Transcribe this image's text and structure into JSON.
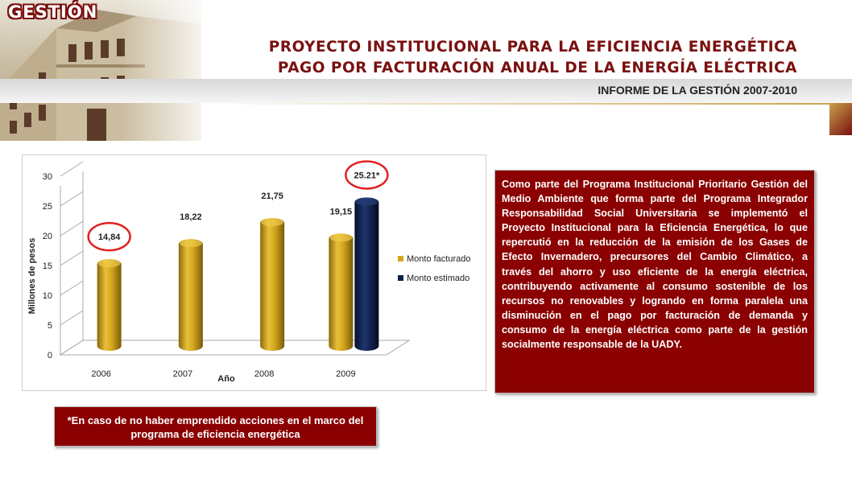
{
  "header": {
    "section_label": "GESTIÓN",
    "title_line1": "PROYECTO INSTITUCIONAL PARA LA EFICIENCIA ENERGÉTICA",
    "title_line2": "PAGO POR FACTURACIÓN ANUAL DE LA ENERGÍA ELÉCTRICA",
    "subtitle": "INFORME DE LA GESTIÓN 2007-2010"
  },
  "colors": {
    "brand_maroon": "#8b0000",
    "title_maroon": "#7a1010",
    "bar_gold": "#d4a51e",
    "bar_navy": "#0e1f4d",
    "highlight_circle": "#e02020"
  },
  "chart_data": {
    "type": "bar",
    "xlabel": "Año",
    "ylabel": "Millones de pesos",
    "ylim": [
      0,
      30
    ],
    "yticks": [
      "0",
      "5",
      "10",
      "15",
      "20",
      "25",
      "30"
    ],
    "categories": [
      "2006",
      "2007",
      "2008",
      "2009"
    ],
    "series": [
      {
        "name": "Monto facturado",
        "values": [
          14.84,
          18.22,
          21.75,
          19.15
        ],
        "labels": [
          "14,84",
          "18,22",
          "21,75",
          "19,15"
        ],
        "color": "#d4a51e"
      },
      {
        "name": "Monto estimado",
        "values": [
          null,
          null,
          null,
          25.21
        ],
        "labels": [
          "",
          "",
          "",
          "25.21*"
        ],
        "color": "#0e1f4d"
      }
    ],
    "highlighted_labels": [
      "14,84",
      "25.21*"
    ],
    "legend_position": "right",
    "grid": false
  },
  "description_box": {
    "text": "Como parte del Programa Institucional Prioritario Gestión del Medio Ambiente que forma parte del Programa Integrador Responsabilidad Social Universitaria se implementó el Proyecto Institucional para la Eficiencia Energética, lo que repercutió en la reducción de la emisión de los Gases de Efecto Invernadero, precursores del Cambio Climático, a través del  ahorro y uso eficiente de la energía eléctrica, contribuyendo activamente al consumo sostenible de los recursos no renovables y logrando en forma paralela una disminución en el pago por facturación de demanda y consumo de la energía eléctrica como parte de la gestión socialmente responsable de  la UADY."
  },
  "footnote_box": {
    "text": "*En caso de no haber emprendido acciones en el marco del programa de eficiencia energética"
  }
}
